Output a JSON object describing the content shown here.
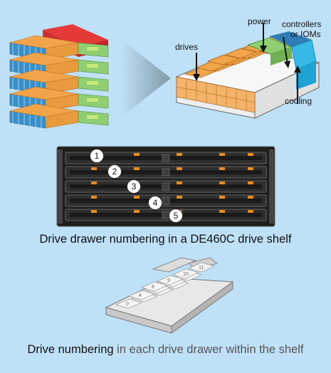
{
  "diagram": {
    "top_labels": {
      "drives": "drives",
      "power": "power",
      "controllers_line1": "controllers",
      "controllers_line2": "or IOMs",
      "cooling": "cooling"
    },
    "drawer_numbers": [
      "1",
      "2",
      "3",
      "4",
      "5"
    ],
    "caption_drawers": "Drive drawer numbering in a DE460C drive shelf",
    "caption_drives_dark": "Drive numbering",
    "caption_drives_muted": " in each drive drawer within the shelf",
    "tray_numbers": [
      "0",
      "1",
      "2",
      "3",
      "4",
      "5",
      "6",
      "7",
      "8",
      "9",
      "10",
      "11"
    ],
    "colors": {
      "background": "#bfe1f7",
      "drive_orange": "#f2a44a",
      "drive_blue": "#3a8fc8",
      "power_green": "#8fce72",
      "controller_red": "#e43a3a",
      "cooling_cyan": "#37b9e6",
      "bezel_black": "#1f1f1f",
      "latch_orange": "#e88c1e"
    }
  }
}
